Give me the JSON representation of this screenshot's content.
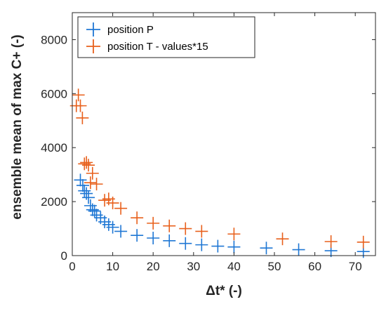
{
  "chart_data": {
    "type": "scatter",
    "title": "",
    "xlabel": "Δt* (-)",
    "ylabel": "ensemble mean of max C+ (-)",
    "xlim": [
      0,
      75
    ],
    "ylim": [
      0,
      9000
    ],
    "xticks": [
      0,
      10,
      20,
      30,
      40,
      50,
      60,
      70
    ],
    "yticks": [
      0,
      2000,
      4000,
      6000,
      8000
    ],
    "xtick_labels": [
      "0",
      "10",
      "20",
      "30",
      "40",
      "50",
      "60",
      "70"
    ],
    "ytick_labels": [
      "0",
      "2000",
      "4000",
      "6000",
      "8000"
    ],
    "grid": false,
    "legend_position": "top-left",
    "series": [
      {
        "name": "position P",
        "color": "#1f77d4",
        "marker": "plus",
        "points": [
          {
            "x": 2.0,
            "y": 2800
          },
          {
            "x": 2.6,
            "y": 2600
          },
          {
            "x": 3.0,
            "y": 2400
          },
          {
            "x": 3.5,
            "y": 2300
          },
          {
            "x": 4.0,
            "y": 2150
          },
          {
            "x": 4.5,
            "y": 1850
          },
          {
            "x": 5.0,
            "y": 1700
          },
          {
            "x": 5.5,
            "y": 1650
          },
          {
            "x": 6.0,
            "y": 1500
          },
          {
            "x": 7.0,
            "y": 1400
          },
          {
            "x": 8.0,
            "y": 1250
          },
          {
            "x": 9.0,
            "y": 1150
          },
          {
            "x": 10.0,
            "y": 1050
          },
          {
            "x": 12.0,
            "y": 900
          },
          {
            "x": 16.0,
            "y": 750
          },
          {
            "x": 20.0,
            "y": 650
          },
          {
            "x": 24.0,
            "y": 550
          },
          {
            "x": 28.0,
            "y": 450
          },
          {
            "x": 32.0,
            "y": 400
          },
          {
            "x": 36.0,
            "y": 350
          },
          {
            "x": 40.0,
            "y": 320
          },
          {
            "x": 48.0,
            "y": 280
          },
          {
            "x": 56.0,
            "y": 220
          },
          {
            "x": 64.0,
            "y": 180
          },
          {
            "x": 72.0,
            "y": 150
          }
        ]
      },
      {
        "name": "position T - values*15",
        "color": "#e8601c",
        "marker": "plus",
        "points": [
          {
            "x": 1.0,
            "y": 5550
          },
          {
            "x": 1.5,
            "y": 5950
          },
          {
            "x": 2.0,
            "y": 5550
          },
          {
            "x": 2.5,
            "y": 5100
          },
          {
            "x": 3.0,
            "y": 3400
          },
          {
            "x": 3.5,
            "y": 3450
          },
          {
            "x": 4.0,
            "y": 3350
          },
          {
            "x": 4.5,
            "y": 2700
          },
          {
            "x": 5.0,
            "y": 3050
          },
          {
            "x": 6.0,
            "y": 2650
          },
          {
            "x": 8.0,
            "y": 2050
          },
          {
            "x": 9.0,
            "y": 2100
          },
          {
            "x": 10.0,
            "y": 1950
          },
          {
            "x": 12.0,
            "y": 1750
          },
          {
            "x": 16.0,
            "y": 1400
          },
          {
            "x": 20.0,
            "y": 1200
          },
          {
            "x": 24.0,
            "y": 1100
          },
          {
            "x": 28.0,
            "y": 1000
          },
          {
            "x": 32.0,
            "y": 900
          },
          {
            "x": 40.0,
            "y": 800
          },
          {
            "x": 52.0,
            "y": 620
          },
          {
            "x": 64.0,
            "y": 520
          },
          {
            "x": 72.0,
            "y": 500
          }
        ]
      }
    ]
  }
}
